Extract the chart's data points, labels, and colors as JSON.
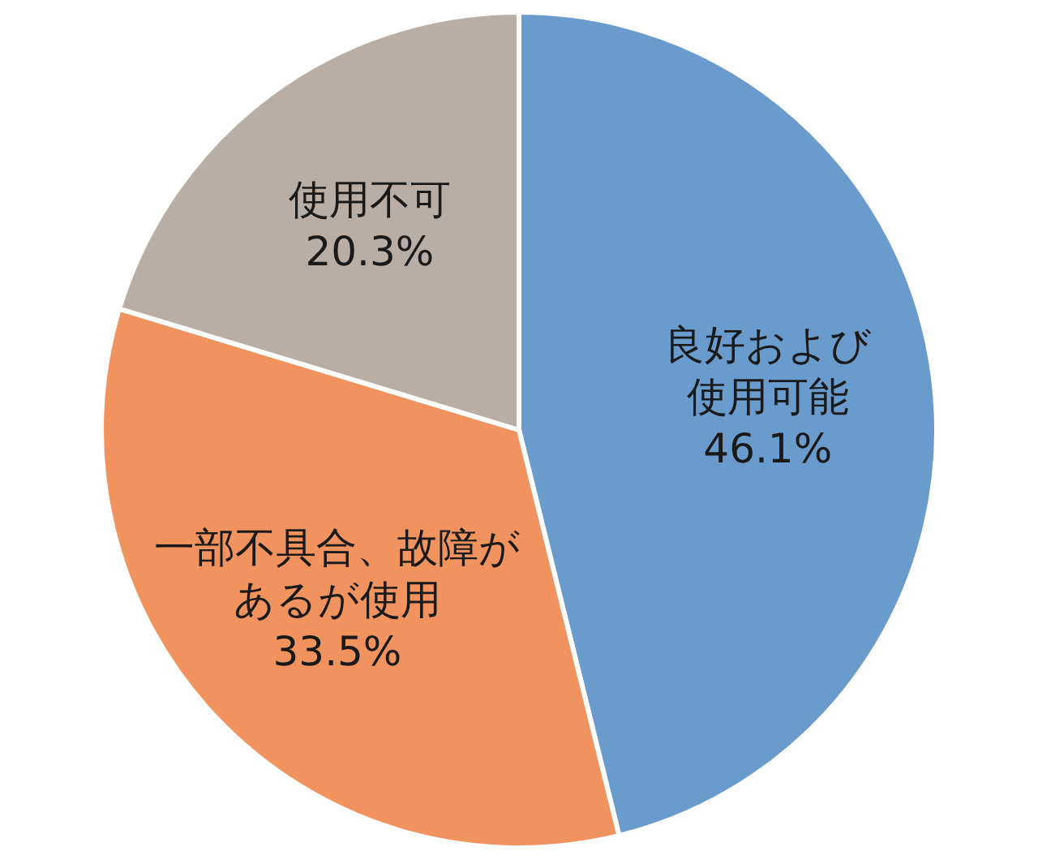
{
  "chart_data": {
    "type": "pie",
    "categories": [
      "良好および使用可能",
      "一部不具合、故障があるが使用",
      "使用不可"
    ],
    "values": [
      46.1,
      33.5,
      20.3
    ],
    "colors": [
      "#6a9bcd",
      "#f1935f",
      "#b9aea5"
    ],
    "value_labels": [
      "46.1%",
      "33.5%",
      "20.3%"
    ],
    "legend": false
  }
}
